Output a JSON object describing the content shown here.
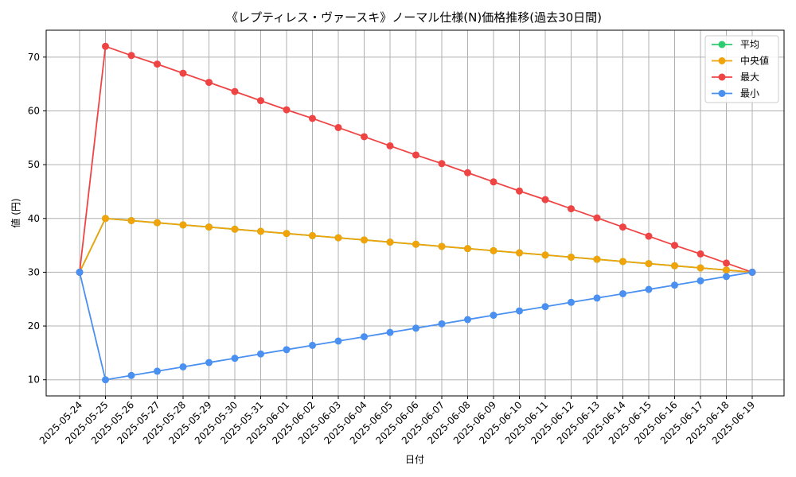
{
  "chart_data": {
    "type": "line",
    "title": "《レプティレス・ヴァースキ》ノーマル仕様(N)価格推移(過去30日間)",
    "xlabel": "日付",
    "ylabel": "値 (円)",
    "categories": [
      "2025-05-24",
      "2025-05-25",
      "2025-05-26",
      "2025-05-27",
      "2025-05-28",
      "2025-05-29",
      "2025-05-30",
      "2025-05-31",
      "2025-06-01",
      "2025-06-02",
      "2025-06-03",
      "2025-06-04",
      "2025-06-05",
      "2025-06-06",
      "2025-06-07",
      "2025-06-08",
      "2025-06-09",
      "2025-06-10",
      "2025-06-11",
      "2025-06-12",
      "2025-06-13",
      "2025-06-14",
      "2025-06-15",
      "2025-06-16",
      "2025-06-17",
      "2025-06-18",
      "2025-06-19"
    ],
    "yticks": [
      10,
      20,
      30,
      40,
      50,
      60,
      70
    ],
    "ylim": [
      7,
      75
    ],
    "grid": true,
    "legend_position": "top-right",
    "series": [
      {
        "name": "平均",
        "color": "#2ecc71",
        "values": [
          30,
          40,
          39.6,
          39.2,
          38.8,
          38.4,
          38,
          37.6,
          37.2,
          36.8,
          36.4,
          36,
          35.6,
          35.2,
          34.8,
          34.4,
          34,
          33.6,
          33.2,
          32.8,
          32.4,
          32,
          31.6,
          31.2,
          30.8,
          30.4,
          30
        ]
      },
      {
        "name": "中央値",
        "color": "#f0a30a",
        "values": [
          30,
          40,
          39.6,
          39.2,
          38.8,
          38.4,
          38,
          37.6,
          37.2,
          36.8,
          36.4,
          36,
          35.6,
          35.2,
          34.8,
          34.4,
          34,
          33.6,
          33.2,
          32.8,
          32.4,
          32,
          31.6,
          31.2,
          30.8,
          30.4,
          30
        ]
      },
      {
        "name": "最大",
        "color": "#ef4444",
        "values": [
          30,
          72,
          70.3,
          68.7,
          67,
          65.3,
          63.6,
          61.9,
          60.2,
          58.6,
          56.9,
          55.2,
          53.5,
          51.8,
          50.2,
          48.5,
          46.8,
          45.1,
          43.5,
          41.8,
          40.1,
          38.4,
          36.7,
          35,
          33.4,
          31.7,
          30
        ]
      },
      {
        "name": "最小",
        "color": "#4a90f0",
        "values": [
          30,
          10,
          10.8,
          11.6,
          12.4,
          13.2,
          14,
          14.8,
          15.6,
          16.4,
          17.2,
          18,
          18.8,
          19.6,
          20.4,
          21.2,
          22,
          22.8,
          23.6,
          24.4,
          25.2,
          26,
          26.8,
          27.6,
          28.4,
          29.2,
          30
        ]
      }
    ]
  }
}
